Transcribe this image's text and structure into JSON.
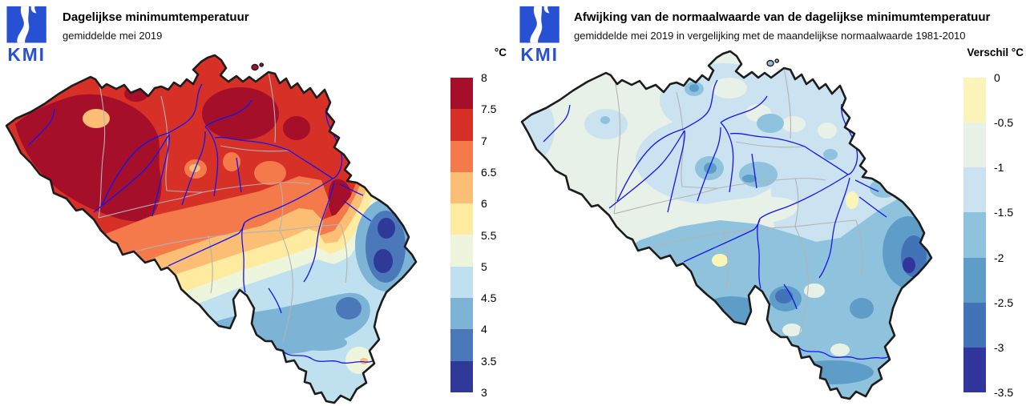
{
  "panels": [
    {
      "id": "mintemp",
      "logo_text": "KMI",
      "title": "Dagelijkse minimumtemperatuur",
      "subtitle": "gemiddelde mei 2019",
      "legend": {
        "unit_label": "°C",
        "tick_labels": [
          "8",
          "7.5",
          "7",
          "6.5",
          "6",
          "5.5",
          "5",
          "4.5",
          "4",
          "3.5",
          "3"
        ],
        "segment_colors": [
          "#a50f29",
          "#d73027",
          "#f4794b",
          "#fbbe74",
          "#feeba0",
          "#edf5dc",
          "#bfe0ee",
          "#7db4d6",
          "#4a78b9",
          "#2f3a98"
        ]
      }
    },
    {
      "id": "anomaly",
      "logo_text": "KMI",
      "title": "Afwijking van de normaalwaarde van de dagelijkse minimumtemperatuur",
      "subtitle": "gemiddelde mei 2019 in vergelijking met de maandelijkse normaalwaarde 1981-2010",
      "legend": {
        "unit_label": "Verschil °C",
        "tick_labels": [
          "0",
          "-0.5",
          "-1",
          "-1.5",
          "-2",
          "-2.5",
          "-3",
          "-3.5"
        ],
        "segment_colors": [
          "#fcf5b9",
          "#e8f1e7",
          "#cbe3f0",
          "#8fc3dd",
          "#5f9dc9",
          "#4273b6",
          "#32359b"
        ]
      }
    }
  ],
  "map_style": {
    "background": "#ffffff",
    "country_border_color": "#1c1c1c",
    "province_border_color": "#b3b3b3",
    "river_color": "#1414ee",
    "logo_blue": "#2750d2"
  }
}
